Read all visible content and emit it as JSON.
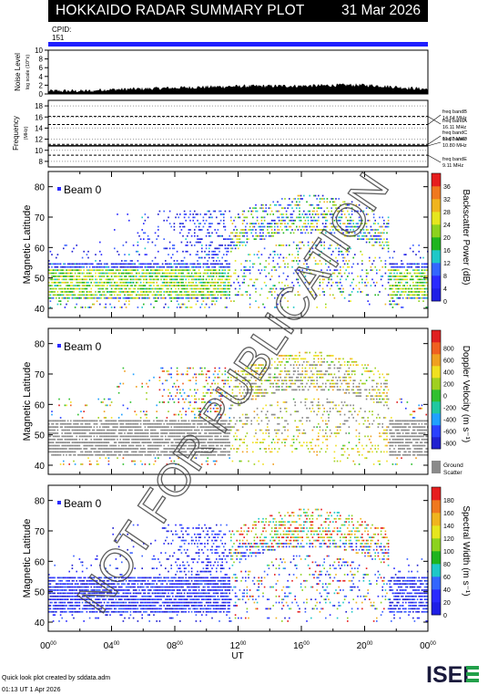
{
  "header": {
    "title": "HOKKAIDO RADAR SUMMARY PLOT",
    "date": "31 Mar 2026"
  },
  "cpid": {
    "label": "CPID:",
    "value": "151"
  },
  "noise_panel": {
    "ylabel": "Noise Level",
    "yunit": "log scale (10^x)",
    "yticks": [
      "0",
      "2",
      "4",
      "6",
      "8",
      "10"
    ]
  },
  "freq_panel": {
    "ylabel": "Frequency",
    "yunit": "(MHz)",
    "yticks": [
      "8",
      "10",
      "12",
      "14",
      "16",
      "18"
    ],
    "bands": [
      {
        "label": "freq bandA",
        "value": "16.11 MHz",
        "mhz": 16.11
      },
      {
        "label": "freq bandB",
        "value": "14.64 MHz",
        "mhz": 14.64
      },
      {
        "label": "freq bandC",
        "value": "11.07 MHz",
        "mhz": 11.07
      },
      {
        "label": "freq bandD",
        "value": "10.80 MHz",
        "mhz": 10.8
      },
      {
        "label": "freq bandE",
        "value": "9.11 MHz",
        "mhz": 9.11
      }
    ]
  },
  "panels": [
    {
      "beam_label": "Beam  0",
      "ylabel": "Magnetic Latitude",
      "cbar_label": "Backscatter Power (dB)",
      "cbar_ticks": [
        "0",
        "4",
        "8",
        "12",
        "16",
        "20",
        "24",
        "28",
        "32",
        "36"
      ],
      "cbar_colors": [
        "#1f1fe6",
        "#2a2aff",
        "#3366ff",
        "#1ec8c8",
        "#1eb41e",
        "#8cd21e",
        "#e6e61e",
        "#f0b41e",
        "#f0781e",
        "#e61e1e"
      ]
    },
    {
      "beam_label": "Beam  0",
      "ylabel": "Magnetic Latitude",
      "cbar_label": "Doppler Velocity (m s⁻¹)",
      "cbar_ticks": [
        "800",
        "600",
        "400",
        "200",
        "0",
        "-200",
        "-400",
        "-600",
        "-800"
      ],
      "cbar_colors": [
        "#2020d0",
        "#2a40ff",
        "#20a0ff",
        "#20c8a0",
        "#30c030",
        "#a0d020",
        "#f0e020",
        "#f0a020",
        "#f06020",
        "#e02020"
      ],
      "ground_scatter_label": [
        "Ground",
        "Scatter"
      ]
    },
    {
      "beam_label": "Beam  0",
      "ylabel": "Magnetic Latitude",
      "cbar_label": "Spectral Width (m s⁻¹)",
      "cbar_ticks": [
        "0",
        "20",
        "40",
        "60",
        "80",
        "100",
        "120",
        "140",
        "160",
        "180"
      ],
      "cbar_colors": [
        "#1f1fe6",
        "#2a2aff",
        "#3366ff",
        "#1ec8c8",
        "#1eb41e",
        "#8cd21e",
        "#e6e61e",
        "#f0b41e",
        "#f0781e",
        "#e61e1e"
      ]
    }
  ],
  "lat_ticks": [
    "40",
    "50",
    "60",
    "70",
    "80"
  ],
  "x_axis": {
    "label": "UT",
    "ticks": [
      {
        "h": "00",
        "m": "00"
      },
      {
        "h": "04",
        "m": "00"
      },
      {
        "h": "08",
        "m": "00"
      },
      {
        "h": "12",
        "m": "00"
      },
      {
        "h": "16",
        "m": "00"
      },
      {
        "h": "20",
        "m": "00"
      },
      {
        "h": "00",
        "m": "00"
      }
    ]
  },
  "watermark": "NOT FOR PUBLICATION",
  "footer": {
    "line1": "Quick look plot created by sddata.adm",
    "line2": "01:13 UT  1 Apr 2026"
  },
  "logo_text": "ISEE",
  "chart_data": {
    "type": "heatmap",
    "x": [
      "00:00",
      "04:00",
      "08:00",
      "12:00",
      "16:00",
      "20:00",
      "24:00"
    ],
    "xlabel": "UT",
    "ylabel": "Magnetic Latitude",
    "ylim": [
      37,
      85
    ],
    "panels": [
      "Backscatter Power (dB)",
      "Doppler Velocity (m s⁻¹)",
      "Spectral Width (m s⁻¹)"
    ],
    "power_range": [
      0,
      36
    ],
    "velocity_range": [
      -800,
      800
    ],
    "width_range": [
      0,
      180
    ],
    "noise_ylim": [
      0,
      10
    ],
    "freq_ylim": [
      8,
      18
    ]
  }
}
